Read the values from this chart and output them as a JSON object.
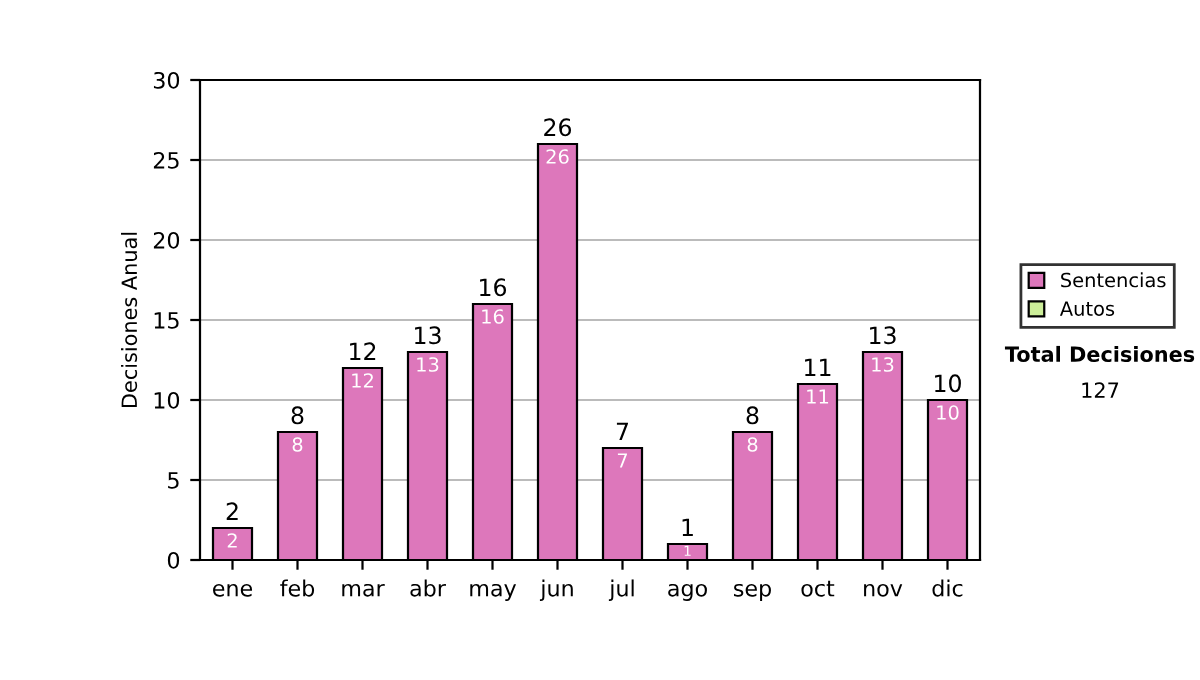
{
  "chart_data": {
    "type": "bar",
    "stacked": true,
    "ylabel": "Decisiones Anual",
    "categories": [
      "ene",
      "feb",
      "mar",
      "abr",
      "may",
      "jun",
      "jul",
      "ago",
      "sep",
      "oct",
      "nov",
      "dic"
    ],
    "series": [
      {
        "name": "Sentencias",
        "color": "#dd77bb",
        "values": [
          2,
          8,
          12,
          13,
          16,
          26,
          7,
          1,
          8,
          11,
          13,
          10
        ],
        "value_labels": [
          "2",
          "8",
          "12",
          "13",
          "16",
          "26",
          "7",
          "1",
          "8",
          "11",
          "13",
          "10"
        ]
      },
      {
        "name": "Autos",
        "color": "#ccee99",
        "values": [
          0,
          0,
          0,
          0,
          0,
          0,
          0,
          0,
          0,
          0,
          0,
          0
        ]
      }
    ],
    "totals": [
      "2",
      "8",
      "12",
      "13",
      "16",
      "26",
      "7",
      "1",
      "8",
      "11",
      "13",
      "10"
    ],
    "ylim": [
      0,
      30
    ],
    "yticks": [
      0,
      5,
      10,
      15,
      20,
      25,
      30
    ],
    "grid": "y",
    "legend": "right",
    "annotations": [
      "Total Decisiones",
      "127"
    ]
  }
}
